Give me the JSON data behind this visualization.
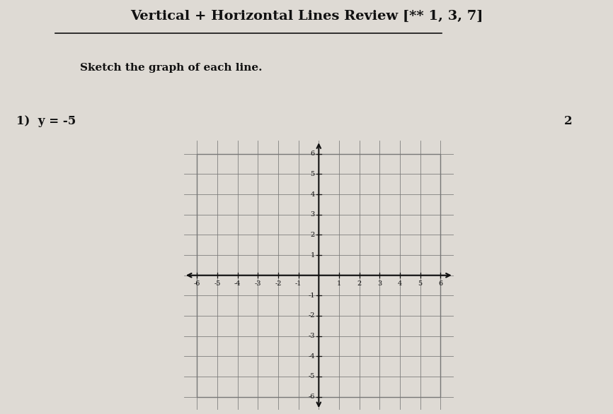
{
  "title": "Vertical + Horizontal Lines Review [** 1, 3, 7]",
  "subtitle": "Sketch the graph of each line.",
  "problem_label": "1)  y = -5",
  "problem_number_right": "2",
  "bg_color": "#dedad4",
  "grid_color": "#777777",
  "axis_color": "#111111",
  "text_color": "#111111",
  "axis_range": [
    -6,
    6
  ],
  "title_fontsize": 14,
  "subtitle_fontsize": 11,
  "problem_fontsize": 12,
  "tick_fontsize": 7
}
